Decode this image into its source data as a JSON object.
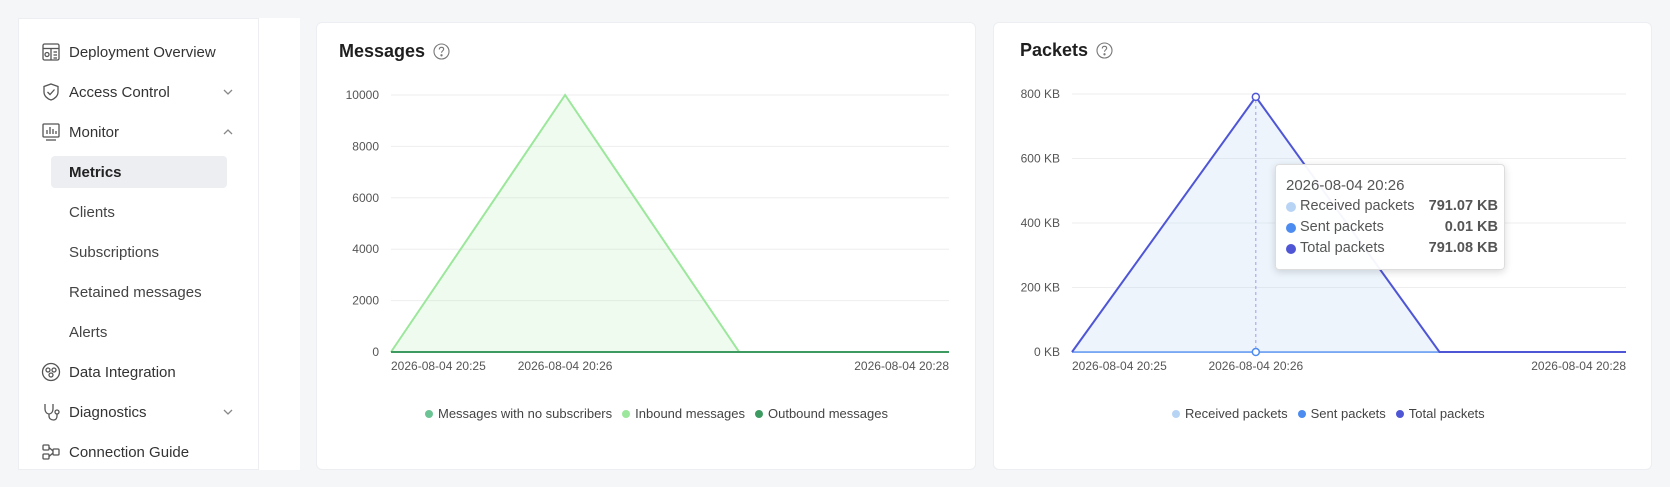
{
  "sidebar": {
    "items": [
      {
        "label": "Deployment Overview",
        "icon": "dashboard-icon"
      },
      {
        "label": "Access Control",
        "icon": "shield-check-icon",
        "chevron": "down"
      },
      {
        "label": "Monitor",
        "icon": "bar-chart-icon",
        "chevron": "up"
      },
      {
        "label": "Data Integration",
        "icon": "integration-icon"
      },
      {
        "label": "Diagnostics",
        "icon": "stethoscope-icon",
        "chevron": "down"
      },
      {
        "label": "Connection Guide",
        "icon": "connection-icon"
      }
    ],
    "monitor_sub": [
      {
        "label": "Metrics",
        "active": true
      },
      {
        "label": "Clients"
      },
      {
        "label": "Subscriptions"
      },
      {
        "label": "Retained messages"
      },
      {
        "label": "Alerts"
      }
    ]
  },
  "messages_card": {
    "title": "Messages",
    "legend": [
      "Messages with no subscribers",
      "Inbound messages",
      "Outbound messages"
    ]
  },
  "packets_card": {
    "title": "Packets",
    "legend": [
      "Received packets",
      "Sent packets",
      "Total packets"
    ],
    "tooltip": {
      "title": "2026-08-04 20:26",
      "rows": [
        {
          "name": "Received packets",
          "value": "791.07 KB",
          "color": "#b8d4f5"
        },
        {
          "name": "Sent packets",
          "value": "0.01 KB",
          "color": "#4c8bf0"
        },
        {
          "name": "Total packets",
          "value": "791.08 KB",
          "color": "#4f56d6"
        }
      ]
    }
  },
  "colors": {
    "msg_no_sub": "#6cc494",
    "msg_inbound": "#9be79b",
    "msg_outbound": "#3d9b62",
    "pk_received": "#b8d4f5",
    "pk_sent": "#4c8bf0",
    "pk_total": "#4f56d6"
  },
  "chart_data": [
    {
      "type": "area",
      "title": "Messages",
      "x": [
        "2026-08-04 20:25",
        "2026-08-04 20:26",
        "2026-08-04 20:27",
        "2026-08-04 20:28"
      ],
      "x_ticks": [
        "2026-08-04 20:25",
        "2026-08-04 20:26",
        "2026-08-04 20:28"
      ],
      "y_ticks": [
        "0",
        "2000",
        "4000",
        "6000",
        "8000",
        "10000"
      ],
      "ylim": [
        0,
        10000
      ],
      "series": [
        {
          "name": "Messages with no subscribers",
          "values": [
            0,
            0,
            0,
            0
          ]
        },
        {
          "name": "Inbound messages",
          "values": [
            0,
            10000,
            0,
            0
          ]
        },
        {
          "name": "Outbound messages",
          "values": [
            0,
            0,
            0,
            0
          ]
        }
      ],
      "grid": true,
      "legend_position": "bottom"
    },
    {
      "type": "area",
      "title": "Packets",
      "x": [
        "2026-08-04 20:25",
        "2026-08-04 20:26",
        "2026-08-04 20:27",
        "2026-08-04 20:28"
      ],
      "x_ticks": [
        "2026-08-04 20:25",
        "2026-08-04 20:26",
        "2026-08-04 20:28"
      ],
      "y_ticks": [
        "0 KB",
        "200 KB",
        "400 KB",
        "600 KB",
        "800 KB"
      ],
      "ylim": [
        0,
        800
      ],
      "y_unit": "KB",
      "series": [
        {
          "name": "Received packets",
          "values": [
            0,
            791.07,
            0,
            0
          ]
        },
        {
          "name": "Sent packets",
          "values": [
            0,
            0.01,
            0,
            0
          ]
        },
        {
          "name": "Total packets",
          "values": [
            0,
            791.08,
            0,
            0
          ]
        }
      ],
      "grid": true,
      "legend_position": "bottom"
    }
  ]
}
